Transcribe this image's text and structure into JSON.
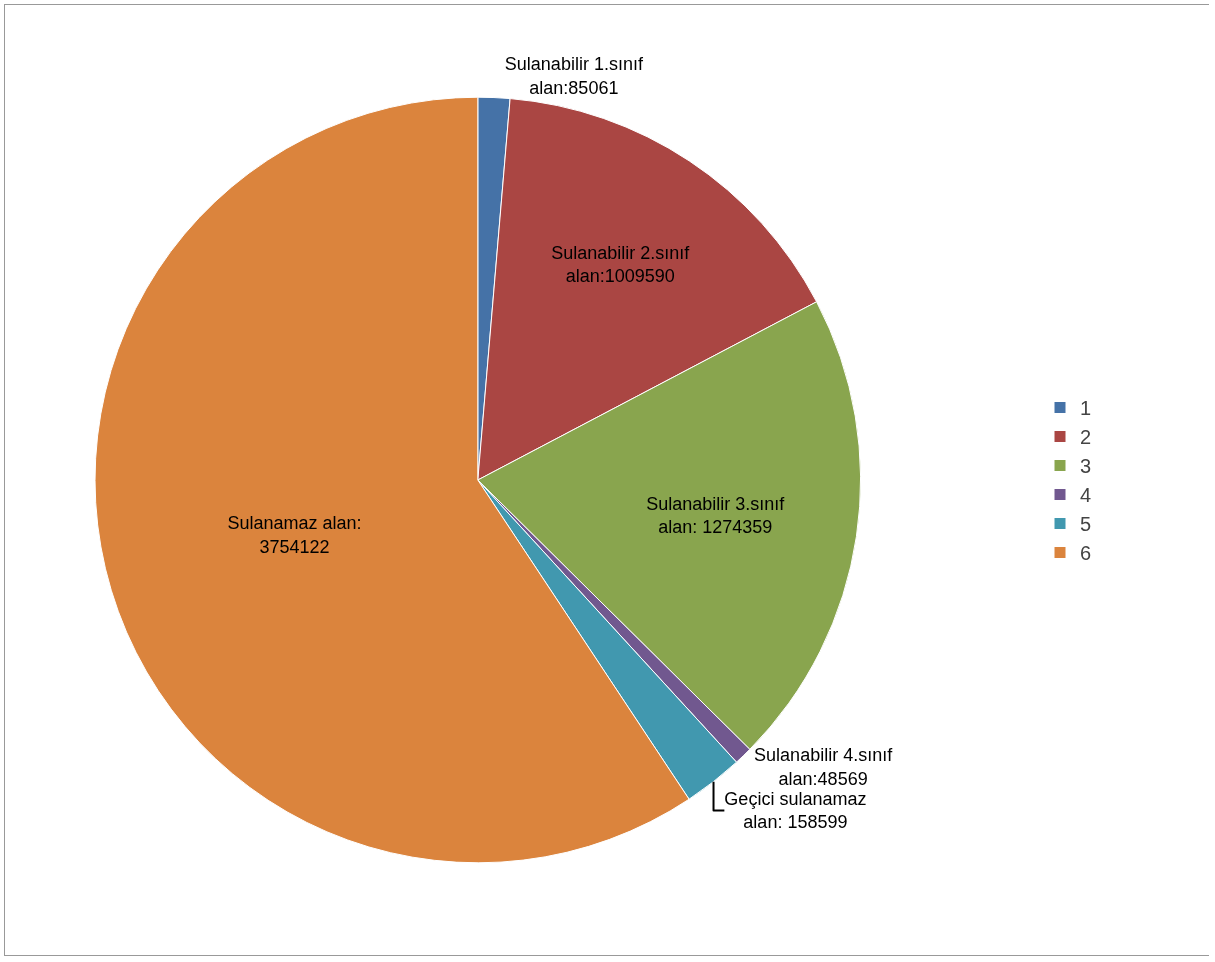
{
  "chart_data": {
    "type": "pie",
    "categories": [
      "1",
      "2",
      "3",
      "4",
      "5",
      "6"
    ],
    "values": [
      85061,
      1009590,
      1274359,
      48569,
      158599,
      3754122
    ],
    "colors": [
      "#4572a7",
      "#aa4643",
      "#89a54e",
      "#71588f",
      "#4198af",
      "#db843d"
    ],
    "value_labels": [
      "Sulanabilir 1.sınıf\nalan:85061",
      "Sulanabilir 2.sınıf\nalan:1009590",
      "Sulanabilir 3.sınıf\nalan: 1274359",
      "Sulanabilir 4.sınıf\nalan:48569",
      "Geçici sulanamaz\nalan: 158599",
      "Sulanamaz alan:\n3754122"
    ],
    "legend": "right"
  }
}
